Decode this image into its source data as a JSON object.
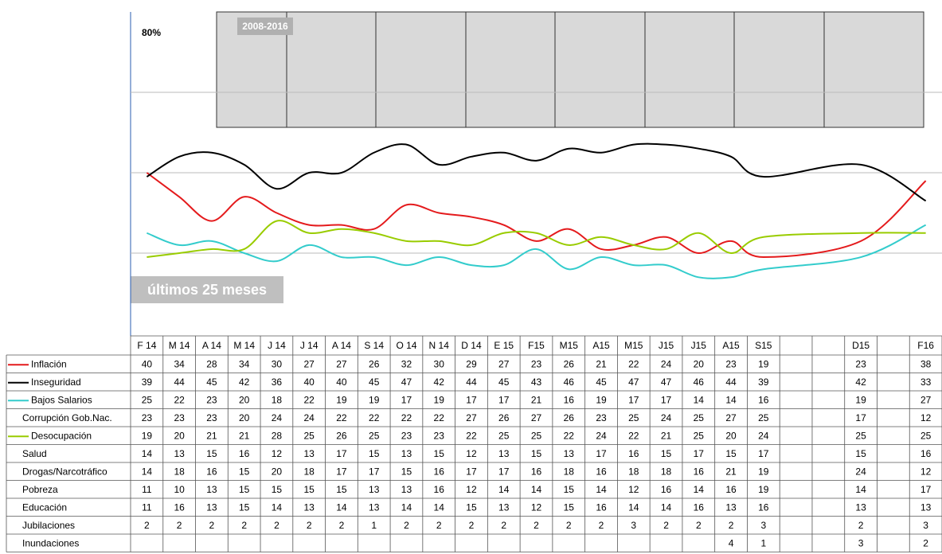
{
  "chart_data": {
    "type": "line",
    "categories": [
      "F 14",
      "M 14",
      "A 14",
      "M 14",
      "J 14",
      "J 14",
      "A 14",
      "S 14",
      "O 14",
      "N 14",
      "D 14",
      "E 15",
      "F15",
      "M15",
      "A15",
      "M15",
      "J15",
      "J15",
      "A15",
      "S15",
      null,
      null,
      "D15",
      null,
      "F16"
    ],
    "inset_label": "2008-2016",
    "range_label": "últimos 25 meses",
    "ylim": [
      0,
      80
    ],
    "yticks": [
      {
        "value": 80,
        "label": "80%"
      }
    ],
    "ygrid": [
      20,
      40,
      60
    ],
    "series": [
      {
        "name": "Inflación",
        "color": "#e41a1c",
        "values": [
          40,
          34,
          28,
          34,
          30,
          27,
          27,
          26,
          32,
          30,
          29,
          27,
          23,
          26,
          21,
          22,
          24,
          20,
          23,
          19,
          null,
          null,
          23,
          null,
          38
        ]
      },
      {
        "name": "Inseguridad",
        "color": "#000000",
        "values": [
          39,
          44,
          45,
          42,
          36,
          40,
          40,
          45,
          47,
          42,
          44,
          45,
          43,
          46,
          45,
          47,
          47,
          46,
          44,
          39,
          null,
          null,
          42,
          null,
          33
        ]
      },
      {
        "name": "Bajos Salarios",
        "color": "#33cccc",
        "values": [
          25,
          22,
          23,
          20,
          18,
          22,
          19,
          19,
          17,
          19,
          17,
          17,
          21,
          16,
          19,
          17,
          17,
          14,
          14,
          16,
          null,
          null,
          19,
          null,
          27
        ]
      },
      {
        "name": "Corrupción Gob.Nac.",
        "values": [
          23,
          23,
          23,
          20,
          24,
          24,
          22,
          22,
          22,
          22,
          27,
          26,
          27,
          26,
          23,
          25,
          24,
          25,
          27,
          25,
          null,
          null,
          17,
          null,
          12
        ]
      },
      {
        "name": "Desocupación",
        "color": "#99cc00",
        "values": [
          19,
          20,
          21,
          21,
          28,
          25,
          26,
          25,
          23,
          23,
          22,
          25,
          25,
          22,
          24,
          22,
          21,
          25,
          20,
          24,
          null,
          null,
          25,
          null,
          25
        ]
      },
      {
        "name": "Salud",
        "values": [
          14,
          13,
          15,
          16,
          12,
          13,
          17,
          15,
          13,
          15,
          12,
          13,
          15,
          13,
          17,
          16,
          15,
          17,
          15,
          17,
          null,
          null,
          15,
          null,
          16
        ]
      },
      {
        "name": "Drogas/Narcotráfico",
        "values": [
          14,
          18,
          16,
          15,
          20,
          18,
          17,
          17,
          15,
          16,
          17,
          17,
          16,
          18,
          16,
          18,
          18,
          16,
          21,
          19,
          null,
          null,
          24,
          null,
          12
        ]
      },
      {
        "name": "Pobreza",
        "values": [
          11,
          10,
          13,
          15,
          15,
          15,
          15,
          13,
          13,
          16,
          12,
          14,
          14,
          15,
          14,
          12,
          16,
          14,
          16,
          19,
          null,
          null,
          14,
          null,
          17
        ]
      },
      {
        "name": "Educación",
        "values": [
          11,
          16,
          13,
          15,
          14,
          13,
          14,
          13,
          14,
          14,
          15,
          13,
          12,
          15,
          16,
          14,
          14,
          16,
          13,
          16,
          null,
          null,
          13,
          null,
          13
        ]
      },
      {
        "name": "Jubilaciones",
        "values": [
          2,
          2,
          2,
          2,
          2,
          2,
          2,
          1,
          2,
          2,
          2,
          2,
          2,
          2,
          2,
          3,
          2,
          2,
          2,
          3,
          null,
          null,
          2,
          null,
          3
        ]
      },
      {
        "name": "Inundaciones",
        "values": [
          null,
          null,
          null,
          null,
          null,
          null,
          null,
          null,
          null,
          null,
          null,
          null,
          null,
          null,
          null,
          null,
          null,
          null,
          4,
          1,
          null,
          null,
          3,
          null,
          2
        ]
      }
    ]
  }
}
